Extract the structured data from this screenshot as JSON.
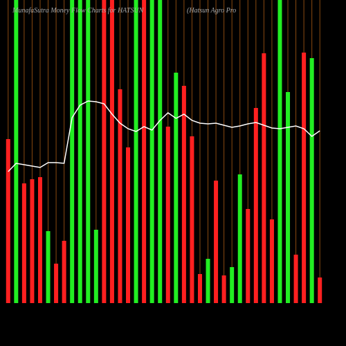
{
  "chart_data": {
    "type": "bar",
    "title": "MunafaSutra  Money Flow  Charts for HATSUN",
    "subtitle": "(Hatsun  Agro  Pro",
    "categories": [
      null,
      null,
      null,
      null,
      null,
      null,
      null,
      null,
      null,
      null,
      null,
      null,
      null,
      null,
      null,
      null,
      null,
      null,
      null,
      null,
      null,
      null,
      null,
      null,
      null,
      null,
      null,
      null,
      null,
      null,
      null,
      null,
      null,
      null,
      null,
      null,
      null,
      null,
      null,
      null
    ],
    "values": [
      237,
      438,
      173,
      179,
      182,
      104,
      57,
      90,
      438,
      438,
      438,
      106,
      438,
      438,
      309,
      225,
      438,
      438,
      438,
      438,
      255,
      333,
      314,
      241,
      42,
      64,
      177,
      40,
      52,
      186,
      136,
      282,
      361,
      121,
      438,
      305,
      70,
      362,
      354,
      37
    ],
    "colors": [
      "#ff2020",
      "#22ee22",
      "#ff2020",
      "#ff2020",
      "#ff2020",
      "#22ee22",
      "#ff2020",
      "#ff2020",
      "#22ee22",
      "#22ee22",
      "#22ee22",
      "#22ee22",
      "#ff2020",
      "#ff2020",
      "#ff2020",
      "#ff2020",
      "#22ee22",
      "#ff2020",
      "#22ee22",
      "#22ee22",
      "#ff2020",
      "#22ee22",
      "#ff2020",
      "#ff2020",
      "#ff2020",
      "#22ee22",
      "#ff2020",
      "#ff2020",
      "#22ee22",
      "#22ee22",
      "#ff2020",
      "#ff2020",
      "#ff2020",
      "#ff2020",
      "#22ee22",
      "#22ee22",
      "#ff2020",
      "#ff2020",
      "#22ee22",
      "#ff2020"
    ],
    "line_values": [
      190,
      202,
      200,
      198,
      196,
      203,
      203,
      202,
      268,
      286,
      292,
      291,
      288,
      273,
      260,
      252,
      248,
      255,
      250,
      264,
      275,
      267,
      273,
      264,
      260,
      259,
      260,
      257,
      254,
      256,
      259,
      261,
      257,
      253,
      252,
      254,
      256,
      252,
      241,
      249
    ],
    "line_color": "#ffffff",
    "ylim": [
      0,
      438
    ],
    "grid": true,
    "grid_color": "#8a4a10",
    "background": "#000000"
  }
}
